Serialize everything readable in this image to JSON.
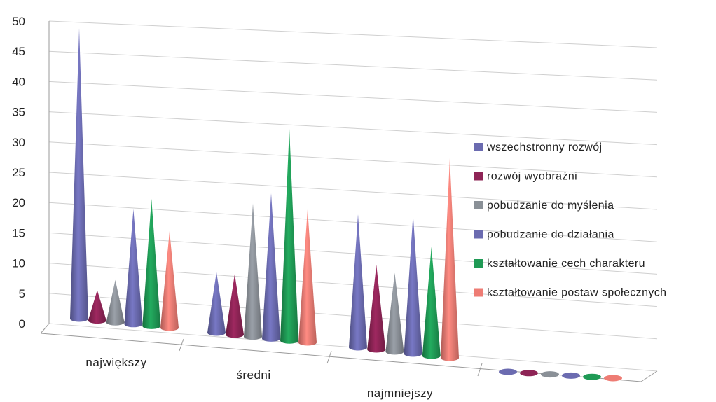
{
  "chart_data": {
    "type": "bar",
    "style": "3d-cone",
    "title": "",
    "xlabel": "",
    "ylabel": "",
    "ylim": [
      0,
      50
    ],
    "yticks": [
      "0",
      "5",
      "10",
      "15",
      "20",
      "25",
      "30",
      "35",
      "40",
      "45",
      "50"
    ],
    "categories": [
      "największy",
      "średni",
      "najmniejszy",
      ""
    ],
    "grid": true,
    "legend_position": "right",
    "series": [
      {
        "name": "wszechstronny rozwój",
        "color": "#6b6bb0",
        "values": [
          48,
          10,
          22,
          0
        ]
      },
      {
        "name": "rozwój wyobraźni",
        "color": "#8e2456",
        "values": [
          5,
          10,
          14,
          0
        ]
      },
      {
        "name": "pobudzanie do myślenia",
        "color": "#8a9097",
        "values": [
          7,
          22,
          13,
          0
        ]
      },
      {
        "name": "pobudzanie do działania",
        "color": "#6b6bb0",
        "values": [
          19,
          24,
          23,
          0
        ]
      },
      {
        "name": "kształtowanie cech charakteru",
        "color": "#1f9a55",
        "values": [
          21,
          35,
          18,
          0
        ]
      },
      {
        "name": "kształtowanie postaw społecznych",
        "color": "#ee7c74",
        "values": [
          16,
          22,
          33,
          0
        ]
      }
    ]
  }
}
